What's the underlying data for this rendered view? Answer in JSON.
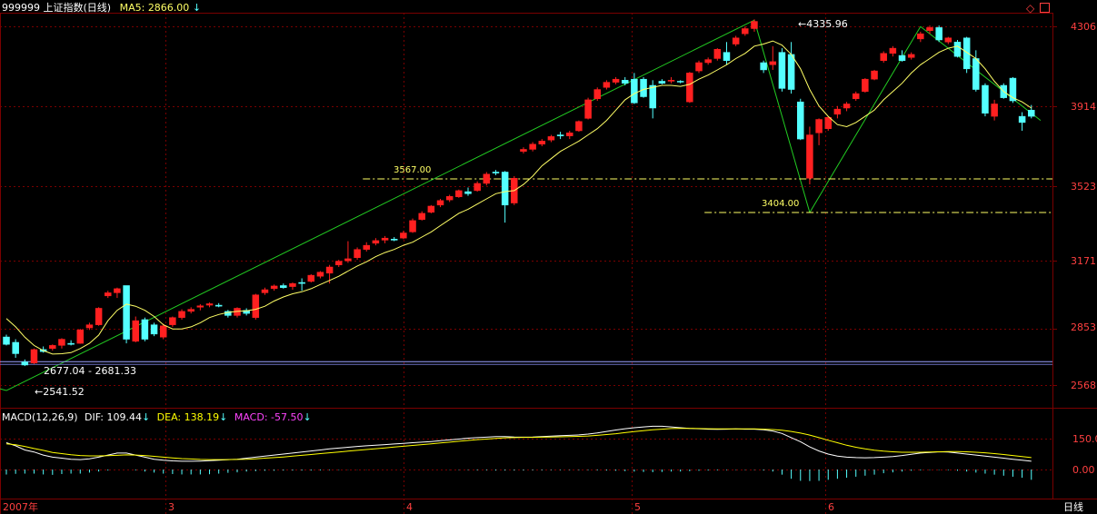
{
  "header": {
    "code_name": "999999 上证指数(日线)",
    "ma_label": "MA5:",
    "ma_value": "2866.00",
    "arrow_down": "↓",
    "window_icons": [
      "restore-icon",
      "maximize-icon"
    ]
  },
  "price_axis": {
    "ticks": [
      "4306",
      "3914",
      "3523",
      "3171",
      "2853",
      "2568"
    ]
  },
  "annotations": {
    "high_label": "4335.96",
    "low_label": "2541.52",
    "gap_label": "2677.04 - 2681.33",
    "line_3567": "3567.00",
    "line_3404": "3404.00"
  },
  "macd_header": {
    "name": "MACD(12,26,9)",
    "dif_label": "DIF:",
    "dif_value": "109.44",
    "dea_label": "DEA:",
    "dea_value": "138.19",
    "macd_label": "MACD:",
    "macd_value": "-57.50",
    "arrow_down": "↓"
  },
  "macd_axis": {
    "ticks": [
      "150.0",
      "0.00"
    ]
  },
  "time_axis": {
    "labels": [
      "2007年",
      "3",
      "4",
      "5",
      "6"
    ],
    "period": "日线"
  },
  "colors": {
    "up": "#ff2020",
    "down": "#54ffff",
    "ma5": "#ffff66",
    "trend": "#22cc22",
    "grid": "#7a0000",
    "axis_text": "#ff4040",
    "dif": "#ffffff",
    "dea": "#ffff00",
    "macd": "#ff44ff"
  },
  "chart_data": {
    "type": "candlestick",
    "title": "999999 上证指数(日线)",
    "ylim": [
      2490,
      4380
    ],
    "candles_ohlc": [
      [
        2801,
        2812,
        2760,
        2765
      ],
      [
        2775,
        2790,
        2700,
        2720
      ],
      [
        2680,
        2692,
        2660,
        2665
      ],
      [
        2675,
        2745,
        2670,
        2740
      ],
      [
        2740,
        2755,
        2725,
        2730
      ],
      [
        2745,
        2765,
        2735,
        2760
      ],
      [
        2760,
        2795,
        2745,
        2790
      ],
      [
        2770,
        2785,
        2760,
        2765
      ],
      [
        2770,
        2840,
        2768,
        2835
      ],
      [
        2845,
        2870,
        2835,
        2860
      ],
      [
        2860,
        2945,
        2855,
        2940
      ],
      [
        3000,
        3025,
        2990,
        3015
      ],
      [
        3015,
        3040,
        2990,
        3035
      ],
      [
        3050,
        2950,
        2770,
        2790
      ],
      [
        2780,
        2900,
        2775,
        2880
      ],
      [
        2885,
        2895,
        2780,
        2790
      ],
      [
        2860,
        2870,
        2805,
        2815
      ],
      [
        2800,
        2865,
        2790,
        2855
      ],
      [
        2860,
        2900,
        2850,
        2895
      ],
      [
        2895,
        2935,
        2885,
        2925
      ],
      [
        2925,
        2945,
        2915,
        2935
      ],
      [
        2945,
        2960,
        2930,
        2952
      ],
      [
        2955,
        2968,
        2945,
        2962
      ],
      [
        2955,
        2965,
        2945,
        2950
      ],
      [
        2925,
        2932,
        2895,
        2905
      ],
      [
        2905,
        2945,
        2895,
        2940
      ],
      [
        2930,
        2940,
        2905,
        2915
      ],
      [
        2895,
        3010,
        2885,
        3005
      ],
      [
        3015,
        3040,
        3005,
        3030
      ],
      [
        3035,
        3055,
        3025,
        3048
      ],
      [
        3050,
        3060,
        3035,
        3040
      ],
      [
        3045,
        3065,
        3030,
        3060
      ],
      [
        3065,
        3085,
        3025,
        3060
      ],
      [
        3070,
        3105,
        3065,
        3100
      ],
      [
        3095,
        3120,
        3085,
        3115
      ],
      [
        3110,
        3150,
        3060,
        3140
      ],
      [
        3150,
        3175,
        3140,
        3168
      ],
      [
        3170,
        3265,
        3160,
        3180
      ],
      [
        3185,
        3235,
        3175,
        3225
      ],
      [
        3225,
        3260,
        3215,
        3245
      ],
      [
        3255,
        3280,
        3245,
        3268
      ],
      [
        3270,
        3290,
        3255,
        3280
      ],
      [
        3275,
        3285,
        3265,
        3270
      ],
      [
        3280,
        3315,
        3275,
        3305
      ],
      [
        3310,
        3375,
        3305,
        3365
      ],
      [
        3370,
        3410,
        3365,
        3400
      ],
      [
        3405,
        3440,
        3400,
        3435
      ],
      [
        3440,
        3470,
        3430,
        3462
      ],
      [
        3465,
        3490,
        3455,
        3482
      ],
      [
        3480,
        3515,
        3475,
        3510
      ],
      [
        3505,
        3525,
        3485,
        3495
      ],
      [
        3510,
        3555,
        3505,
        3545
      ],
      [
        3545,
        3600,
        3535,
        3590
      ],
      [
        3600,
        3610,
        3585,
        3595
      ],
      [
        3600,
        3605,
        3355,
        3440
      ],
      [
        3450,
        3580,
        3440,
        3570
      ],
      [
        3700,
        3720,
        3690,
        3710
      ],
      [
        3710,
        3745,
        3700,
        3735
      ],
      [
        3735,
        3760,
        3725,
        3750
      ],
      [
        3755,
        3780,
        3745,
        3772
      ],
      [
        3780,
        3795,
        3760,
        3775
      ],
      [
        3775,
        3800,
        3760,
        3790
      ],
      [
        3800,
        3850,
        3795,
        3845
      ],
      [
        3860,
        3960,
        3855,
        3950
      ],
      [
        3955,
        4010,
        3945,
        4000
      ],
      [
        4010,
        4045,
        4000,
        4035
      ],
      [
        4035,
        4060,
        4025,
        4050
      ],
      [
        4045,
        4060,
        4020,
        4030
      ],
      [
        4050,
        4080,
        3930,
        3935
      ],
      [
        4050,
        4060,
        3960,
        3965
      ],
      [
        4020,
        4045,
        3860,
        3910
      ],
      [
        4040,
        4050,
        4025,
        4030
      ],
      [
        4040,
        4060,
        4030,
        4045
      ],
      [
        4040,
        4045,
        4030,
        4038
      ],
      [
        3940,
        4085,
        3935,
        4080
      ],
      [
        4090,
        4140,
        4080,
        4130
      ],
      [
        4130,
        4155,
        4120,
        4145
      ],
      [
        4150,
        4200,
        4140,
        4195
      ],
      [
        4180,
        4230,
        4120,
        4140
      ],
      [
        4220,
        4260,
        4210,
        4250
      ],
      [
        4270,
        4305,
        4260,
        4295
      ],
      [
        4295,
        4340,
        4280,
        4330
      ],
      [
        4130,
        4140,
        4080,
        4095
      ],
      [
        4120,
        4210,
        4095,
        4135
      ],
      [
        4180,
        4200,
        3990,
        4005
      ],
      [
        4170,
        4230,
        3980,
        4000
      ],
      [
        3940,
        3955,
        3755,
        3760
      ],
      [
        3570,
        3820,
        3540,
        3780
      ],
      [
        3790,
        3860,
        3730,
        3855
      ],
      [
        3810,
        3870,
        3800,
        3865
      ],
      [
        3880,
        3920,
        3860,
        3905
      ],
      [
        3910,
        3940,
        3895,
        3930
      ],
      [
        3955,
        3990,
        3945,
        3980
      ],
      [
        3990,
        4055,
        3985,
        4050
      ],
      [
        4050,
        4095,
        4045,
        4090
      ],
      [
        4140,
        4185,
        4130,
        4175
      ],
      [
        4175,
        4210,
        4160,
        4200
      ],
      [
        4165,
        4190,
        4135,
        4140
      ],
      [
        4155,
        4180,
        4145,
        4170
      ],
      [
        4245,
        4280,
        4230,
        4270
      ],
      [
        4285,
        4310,
        4270,
        4300
      ],
      [
        4300,
        4310,
        4230,
        4240
      ],
      [
        4230,
        4255,
        4220,
        4250
      ],
      [
        4230,
        4240,
        4155,
        4160
      ],
      [
        4250,
        4255,
        4080,
        4100
      ],
      [
        4150,
        4190,
        3990,
        4000
      ],
      [
        4020,
        4030,
        3870,
        3885
      ],
      [
        3870,
        3950,
        3850,
        3930
      ],
      [
        4020,
        4030,
        3955,
        3960
      ],
      [
        4055,
        4060,
        3935,
        3945
      ],
      [
        3870,
        3890,
        3800,
        3840
      ],
      [
        3900,
        3925,
        3860,
        3870
      ]
    ],
    "ma5": [
      2890,
      2850,
      2800,
      2760,
      2735,
      2718,
      2720,
      2725,
      2745,
      2770,
      2810,
      2880,
      2930,
      2960,
      2950,
      2930,
      2900,
      2860,
      2840,
      2840,
      2850,
      2870,
      2895,
      2910,
      2920,
      2925,
      2928,
      2935,
      2950,
      2975,
      2995,
      3010,
      3020,
      3035,
      3055,
      3075,
      3095,
      3120,
      3145,
      3165,
      3190,
      3210,
      3225,
      3245,
      3260,
      3285,
      3310,
      3340,
      3370,
      3400,
      3420,
      3445,
      3470,
      3495,
      3505,
      3510,
      3540,
      3580,
      3630,
      3665,
      3700,
      3725,
      3750,
      3780,
      3810,
      3850,
      3900,
      3950,
      3980,
      4000,
      4010,
      4020,
      4020,
      4015,
      4025,
      4050,
      4070,
      4095,
      4120,
      4150,
      4175,
      4210,
      4220,
      4235,
      4215,
      4170,
      4100,
      4000,
      3920,
      3870,
      3830,
      3820,
      3840,
      3870,
      3900,
      3950,
      3990,
      4030,
      4080,
      4120,
      4150,
      4180,
      4200,
      4210,
      4180,
      4150,
      4100,
      4040,
      3990,
      3960,
      3940,
      3910
    ],
    "trend_lines": [
      {
        "from": [
          0,
          2541.52
        ],
        "to": [
          81,
          4335.96
        ]
      },
      {
        "from": [
          81,
          4335.96
        ],
        "to": [
          87,
          3404
        ]
      },
      {
        "from": [
          87,
          3404
        ],
        "to": [
          99,
          4305
        ]
      },
      {
        "from": [
          99,
          4305
        ],
        "to": [
          112,
          3850
        ]
      },
      {
        "from": [
          0,
          2541.52
        ],
        "to": [
          -1.5,
          2560
        ]
      }
    ],
    "horizontal_levels": [
      {
        "value": 3567.0,
        "start_index": 39
      },
      {
        "value": 3404.0,
        "start_index": 76
      },
      {
        "value": 2681.33,
        "start_index": 0,
        "style": "gap"
      }
    ],
    "macd": {
      "ylim": [
        -60,
        270
      ],
      "dif": [
        130,
        115,
        95,
        85,
        70,
        60,
        55,
        50,
        48,
        52,
        60,
        70,
        80,
        80,
        70,
        60,
        50,
        45,
        42,
        40,
        40,
        41,
        43,
        45,
        48,
        50,
        55,
        60,
        65,
        70,
        75,
        80,
        85,
        90,
        95,
        100,
        104,
        108,
        112,
        115,
        118,
        121,
        124,
        127,
        130,
        133,
        136,
        140,
        144,
        148,
        152,
        155,
        157,
        160,
        160,
        158,
        157,
        158,
        160,
        162,
        164,
        166,
        168,
        172,
        178,
        185,
        192,
        198,
        203,
        207,
        210,
        210,
        207,
        203,
        200,
        198,
        196,
        195,
        196,
        197,
        196,
        196,
        193,
        187,
        175,
        155,
        135,
        110,
        90,
        75,
        65,
        60,
        58,
        57,
        58,
        60,
        63,
        68,
        74,
        80,
        83,
        86,
        85,
        80,
        75,
        70,
        65,
        60,
        55,
        50,
        45,
        40
      ],
      "dea": [
        125,
        120,
        112,
        102,
        93,
        83,
        77,
        72,
        68,
        66,
        66,
        67,
        69,
        71,
        70,
        68,
        64,
        60,
        56,
        53,
        51,
        49,
        48,
        48,
        48,
        49,
        50,
        52,
        55,
        58,
        61,
        65,
        69,
        73,
        77,
        81,
        85,
        89,
        93,
        97,
        101,
        105,
        109,
        113,
        117,
        121,
        125,
        129,
        133,
        137,
        141,
        145,
        148,
        151,
        154,
        155,
        156,
        156,
        157,
        158,
        159,
        160,
        161,
        163,
        166,
        170,
        174,
        179,
        184,
        189,
        193,
        196,
        199,
        200,
        200,
        199,
        198,
        197,
        197,
        197,
        197,
        197,
        196,
        194,
        191,
        185,
        177,
        167,
        155,
        142,
        130,
        118,
        108,
        100,
        94,
        89,
        86,
        84,
        84,
        84,
        85,
        86,
        87,
        87,
        86,
        84,
        81,
        77,
        73,
        68,
        63,
        58
      ],
      "hist": [
        -24,
        -21,
        -20,
        -20,
        -24,
        -26,
        -22,
        -20,
        -20,
        -15,
        -10,
        -5,
        0,
        0,
        -4,
        -10,
        -15,
        -20,
        -22,
        -24,
        -24,
        -24,
        -23,
        -20,
        -16,
        -14,
        -10,
        -8,
        -6,
        -6,
        -5,
        -5,
        -5,
        -5,
        -4,
        -3,
        -2,
        -1,
        -1,
        -1,
        0,
        0,
        0,
        0,
        0,
        0,
        0,
        0,
        -1,
        -2,
        -3,
        -4,
        -4,
        -5,
        -5,
        -5,
        -5,
        -4,
        -4,
        -3,
        -3,
        -3,
        -3,
        -3,
        -4,
        -5,
        -6,
        -8,
        -10,
        -12,
        -13,
        -12,
        -10,
        -10,
        -8,
        -6,
        -5,
        -4,
        -3,
        -2,
        -2,
        -2,
        -5,
        -10,
        -25,
        -45,
        -55,
        -56,
        -55,
        -50,
        -45,
        -40,
        -35,
        -30,
        -25,
        -18,
        -14,
        -10,
        -6,
        -4,
        -2,
        -2,
        -3,
        -6,
        -10,
        -15,
        -20,
        -25,
        -30,
        -35,
        -40,
        -50
      ]
    }
  }
}
